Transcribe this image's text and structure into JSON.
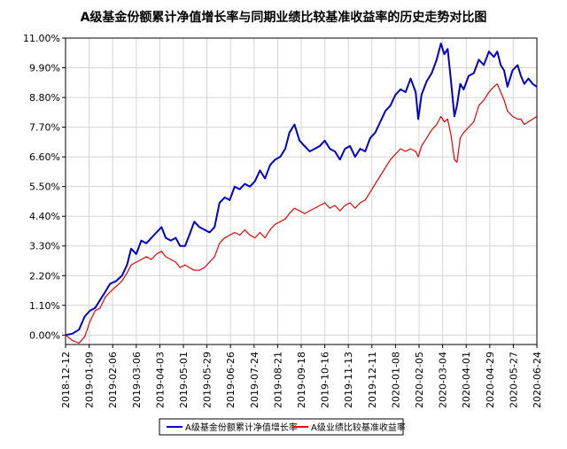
{
  "chart_data": {
    "type": "line",
    "title": "A级基金份额累计净值增长率与同期业绩比较基准收益率的历史走势对比图",
    "xlabel": "",
    "ylabel": "",
    "ylim": [
      -0.35,
      11.0
    ],
    "yticks": [
      "11.00%",
      "9.90%",
      "8.80%",
      "7.70%",
      "6.60%",
      "5.50%",
      "4.40%",
      "3.30%",
      "2.20%",
      "1.10%",
      "0.00%"
    ],
    "ytick_values": [
      11.0,
      9.9,
      8.8,
      7.7,
      6.6,
      5.5,
      4.4,
      3.3,
      2.2,
      1.1,
      0.0
    ],
    "xlim": [
      "2018-12-12",
      "2020-06-24"
    ],
    "xticks": [
      "2018-12-12",
      "2019-01-09",
      "2019-02-06",
      "2019-03-06",
      "2019-04-03",
      "2019-05-01",
      "2019-05-29",
      "2019-06-26",
      "2019-07-24",
      "2019-08-21",
      "2019-09-18",
      "2019-10-16",
      "2019-11-13",
      "2019-12-11",
      "2020-01-08",
      "2020-02-05",
      "2020-03-04",
      "2020-04-01",
      "2020-04-29",
      "2020-05-27",
      "2020-06-24"
    ],
    "grid": true,
    "legend": "bottom-center",
    "series": [
      {
        "name": "A级基金份额累计净值增长率",
        "color": "#0000cc",
        "points": [
          [
            "2018-12-12",
            0.0
          ],
          [
            "2018-12-20",
            0.05
          ],
          [
            "2018-12-28",
            0.2
          ],
          [
            "2019-01-04",
            0.7
          ],
          [
            "2019-01-10",
            0.9
          ],
          [
            "2019-01-16",
            1.0
          ],
          [
            "2019-01-22",
            1.3
          ],
          [
            "2019-01-28",
            1.6
          ],
          [
            "2019-02-03",
            1.9
          ],
          [
            "2019-02-10",
            2.0
          ],
          [
            "2019-02-17",
            2.2
          ],
          [
            "2019-02-23",
            2.6
          ],
          [
            "2019-02-28",
            3.2
          ],
          [
            "2019-03-06",
            3.0
          ],
          [
            "2019-03-12",
            3.5
          ],
          [
            "2019-03-18",
            3.4
          ],
          [
            "2019-03-24",
            3.6
          ],
          [
            "2019-03-30",
            3.8
          ],
          [
            "2019-04-05",
            4.0
          ],
          [
            "2019-04-10",
            3.6
          ],
          [
            "2019-04-16",
            3.5
          ],
          [
            "2019-04-22",
            3.6
          ],
          [
            "2019-04-27",
            3.3
          ],
          [
            "2019-05-03",
            3.3
          ],
          [
            "2019-05-08",
            3.7
          ],
          [
            "2019-05-14",
            4.2
          ],
          [
            "2019-05-20",
            4.0
          ],
          [
            "2019-05-26",
            3.9
          ],
          [
            "2019-06-01",
            3.8
          ],
          [
            "2019-06-07",
            4.0
          ],
          [
            "2019-06-13",
            4.9
          ],
          [
            "2019-06-19",
            5.1
          ],
          [
            "2019-06-25",
            5.0
          ],
          [
            "2019-07-01",
            5.5
          ],
          [
            "2019-07-07",
            5.4
          ],
          [
            "2019-07-13",
            5.6
          ],
          [
            "2019-07-19",
            5.5
          ],
          [
            "2019-07-25",
            5.7
          ],
          [
            "2019-07-31",
            6.1
          ],
          [
            "2019-08-06",
            5.8
          ],
          [
            "2019-08-12",
            6.3
          ],
          [
            "2019-08-18",
            6.5
          ],
          [
            "2019-08-24",
            6.6
          ],
          [
            "2019-08-30",
            6.9
          ],
          [
            "2019-09-04",
            7.5
          ],
          [
            "2019-09-10",
            7.8
          ],
          [
            "2019-09-16",
            7.2
          ],
          [
            "2019-09-22",
            7.0
          ],
          [
            "2019-09-28",
            6.8
          ],
          [
            "2019-10-04",
            6.9
          ],
          [
            "2019-10-10",
            7.0
          ],
          [
            "2019-10-16",
            7.2
          ],
          [
            "2019-10-22",
            6.9
          ],
          [
            "2019-10-28",
            6.8
          ],
          [
            "2019-11-03",
            6.5
          ],
          [
            "2019-11-09",
            6.9
          ],
          [
            "2019-11-15",
            7.0
          ],
          [
            "2019-11-21",
            6.6
          ],
          [
            "2019-11-27",
            6.9
          ],
          [
            "2019-12-03",
            6.8
          ],
          [
            "2019-12-09",
            7.3
          ],
          [
            "2019-12-15",
            7.5
          ],
          [
            "2019-12-21",
            7.9
          ],
          [
            "2019-12-27",
            8.3
          ],
          [
            "2020-01-02",
            8.5
          ],
          [
            "2020-01-08",
            8.9
          ],
          [
            "2020-01-14",
            9.1
          ],
          [
            "2020-01-20",
            9.0
          ],
          [
            "2020-01-26",
            9.5
          ],
          [
            "2020-02-01",
            9.0
          ],
          [
            "2020-02-04",
            8.0
          ],
          [
            "2020-02-08",
            8.9
          ],
          [
            "2020-02-14",
            9.4
          ],
          [
            "2020-02-20",
            9.7
          ],
          [
            "2020-02-26",
            10.2
          ],
          [
            "2020-03-02",
            10.8
          ],
          [
            "2020-03-06",
            10.4
          ],
          [
            "2020-03-10",
            10.6
          ],
          [
            "2020-03-14",
            9.4
          ],
          [
            "2020-03-18",
            8.1
          ],
          [
            "2020-03-21",
            8.5
          ],
          [
            "2020-03-25",
            9.3
          ],
          [
            "2020-03-29",
            9.1
          ],
          [
            "2020-04-04",
            9.6
          ],
          [
            "2020-04-10",
            9.7
          ],
          [
            "2020-04-16",
            10.2
          ],
          [
            "2020-04-22",
            10.0
          ],
          [
            "2020-04-28",
            10.5
          ],
          [
            "2020-05-04",
            10.3
          ],
          [
            "2020-05-08",
            10.5
          ],
          [
            "2020-05-12",
            10.0
          ],
          [
            "2020-05-16",
            9.8
          ],
          [
            "2020-05-20",
            9.2
          ],
          [
            "2020-05-26",
            9.8
          ],
          [
            "2020-06-01",
            10.0
          ],
          [
            "2020-06-05",
            9.6
          ],
          [
            "2020-06-09",
            9.3
          ],
          [
            "2020-06-14",
            9.5
          ],
          [
            "2020-06-19",
            9.3
          ],
          [
            "2020-06-24",
            9.2
          ]
        ]
      },
      {
        "name": "A级业绩比较基准收益率",
        "color": "#ee0000",
        "points": [
          [
            "2018-12-12",
            0.0
          ],
          [
            "2018-12-20",
            -0.2
          ],
          [
            "2018-12-28",
            -0.3
          ],
          [
            "2019-01-04",
            -0.05
          ],
          [
            "2019-01-10",
            0.5
          ],
          [
            "2019-01-16",
            0.9
          ],
          [
            "2019-01-22",
            1.0
          ],
          [
            "2019-01-28",
            1.4
          ],
          [
            "2019-02-03",
            1.6
          ],
          [
            "2019-02-10",
            1.8
          ],
          [
            "2019-02-17",
            2.0
          ],
          [
            "2019-02-23",
            2.3
          ],
          [
            "2019-02-28",
            2.6
          ],
          [
            "2019-03-06",
            2.7
          ],
          [
            "2019-03-12",
            2.8
          ],
          [
            "2019-03-18",
            2.9
          ],
          [
            "2019-03-24",
            2.8
          ],
          [
            "2019-03-30",
            3.0
          ],
          [
            "2019-04-05",
            3.1
          ],
          [
            "2019-04-10",
            2.9
          ],
          [
            "2019-04-16",
            2.8
          ],
          [
            "2019-04-22",
            2.7
          ],
          [
            "2019-04-27",
            2.5
          ],
          [
            "2019-05-03",
            2.6
          ],
          [
            "2019-05-08",
            2.5
          ],
          [
            "2019-05-14",
            2.4
          ],
          [
            "2019-05-20",
            2.4
          ],
          [
            "2019-05-26",
            2.5
          ],
          [
            "2019-06-01",
            2.7
          ],
          [
            "2019-06-07",
            2.9
          ],
          [
            "2019-06-13",
            3.4
          ],
          [
            "2019-06-19",
            3.6
          ],
          [
            "2019-06-25",
            3.7
          ],
          [
            "2019-07-01",
            3.8
          ],
          [
            "2019-07-07",
            3.7
          ],
          [
            "2019-07-13",
            3.9
          ],
          [
            "2019-07-19",
            3.7
          ],
          [
            "2019-07-25",
            3.6
          ],
          [
            "2019-07-31",
            3.8
          ],
          [
            "2019-08-06",
            3.6
          ],
          [
            "2019-08-12",
            3.9
          ],
          [
            "2019-08-18",
            4.1
          ],
          [
            "2019-08-24",
            4.2
          ],
          [
            "2019-08-30",
            4.3
          ],
          [
            "2019-09-04",
            4.5
          ],
          [
            "2019-09-10",
            4.7
          ],
          [
            "2019-09-16",
            4.6
          ],
          [
            "2019-09-22",
            4.5
          ],
          [
            "2019-09-28",
            4.6
          ],
          [
            "2019-10-04",
            4.7
          ],
          [
            "2019-10-10",
            4.8
          ],
          [
            "2019-10-16",
            4.9
          ],
          [
            "2019-10-22",
            4.7
          ],
          [
            "2019-10-28",
            4.8
          ],
          [
            "2019-11-03",
            4.6
          ],
          [
            "2019-11-09",
            4.8
          ],
          [
            "2019-11-15",
            4.9
          ],
          [
            "2019-11-21",
            4.7
          ],
          [
            "2019-11-27",
            4.9
          ],
          [
            "2019-12-03",
            5.0
          ],
          [
            "2019-12-09",
            5.3
          ],
          [
            "2019-12-15",
            5.6
          ],
          [
            "2019-12-21",
            5.9
          ],
          [
            "2019-12-27",
            6.2
          ],
          [
            "2020-01-02",
            6.5
          ],
          [
            "2020-01-08",
            6.7
          ],
          [
            "2020-01-14",
            6.9
          ],
          [
            "2020-01-20",
            6.8
          ],
          [
            "2020-01-26",
            6.9
          ],
          [
            "2020-02-01",
            6.8
          ],
          [
            "2020-02-04",
            6.6
          ],
          [
            "2020-02-08",
            7.0
          ],
          [
            "2020-02-14",
            7.3
          ],
          [
            "2020-02-20",
            7.6
          ],
          [
            "2020-02-26",
            7.8
          ],
          [
            "2020-03-02",
            8.1
          ],
          [
            "2020-03-06",
            7.9
          ],
          [
            "2020-03-10",
            8.0
          ],
          [
            "2020-03-14",
            7.4
          ],
          [
            "2020-03-18",
            6.5
          ],
          [
            "2020-03-21",
            6.4
          ],
          [
            "2020-03-25",
            7.3
          ],
          [
            "2020-03-29",
            7.5
          ],
          [
            "2020-04-04",
            7.7
          ],
          [
            "2020-04-10",
            7.9
          ],
          [
            "2020-04-16",
            8.5
          ],
          [
            "2020-04-22",
            8.7
          ],
          [
            "2020-04-28",
            9.0
          ],
          [
            "2020-05-04",
            9.2
          ],
          [
            "2020-05-08",
            9.3
          ],
          [
            "2020-05-12",
            9.0
          ],
          [
            "2020-05-16",
            8.7
          ],
          [
            "2020-05-20",
            8.3
          ],
          [
            "2020-05-26",
            8.1
          ],
          [
            "2020-06-01",
            8.0
          ],
          [
            "2020-06-05",
            8.0
          ],
          [
            "2020-06-09",
            7.8
          ],
          [
            "2020-06-14",
            7.9
          ],
          [
            "2020-06-19",
            8.0
          ],
          [
            "2020-06-24",
            8.1
          ]
        ]
      }
    ]
  },
  "legend": {
    "items": [
      {
        "label": "A级基金份额累计净值增长率",
        "color": "#0000cc"
      },
      {
        "label": "A级业绩比较基准收益率",
        "color": "#ee0000"
      }
    ]
  }
}
